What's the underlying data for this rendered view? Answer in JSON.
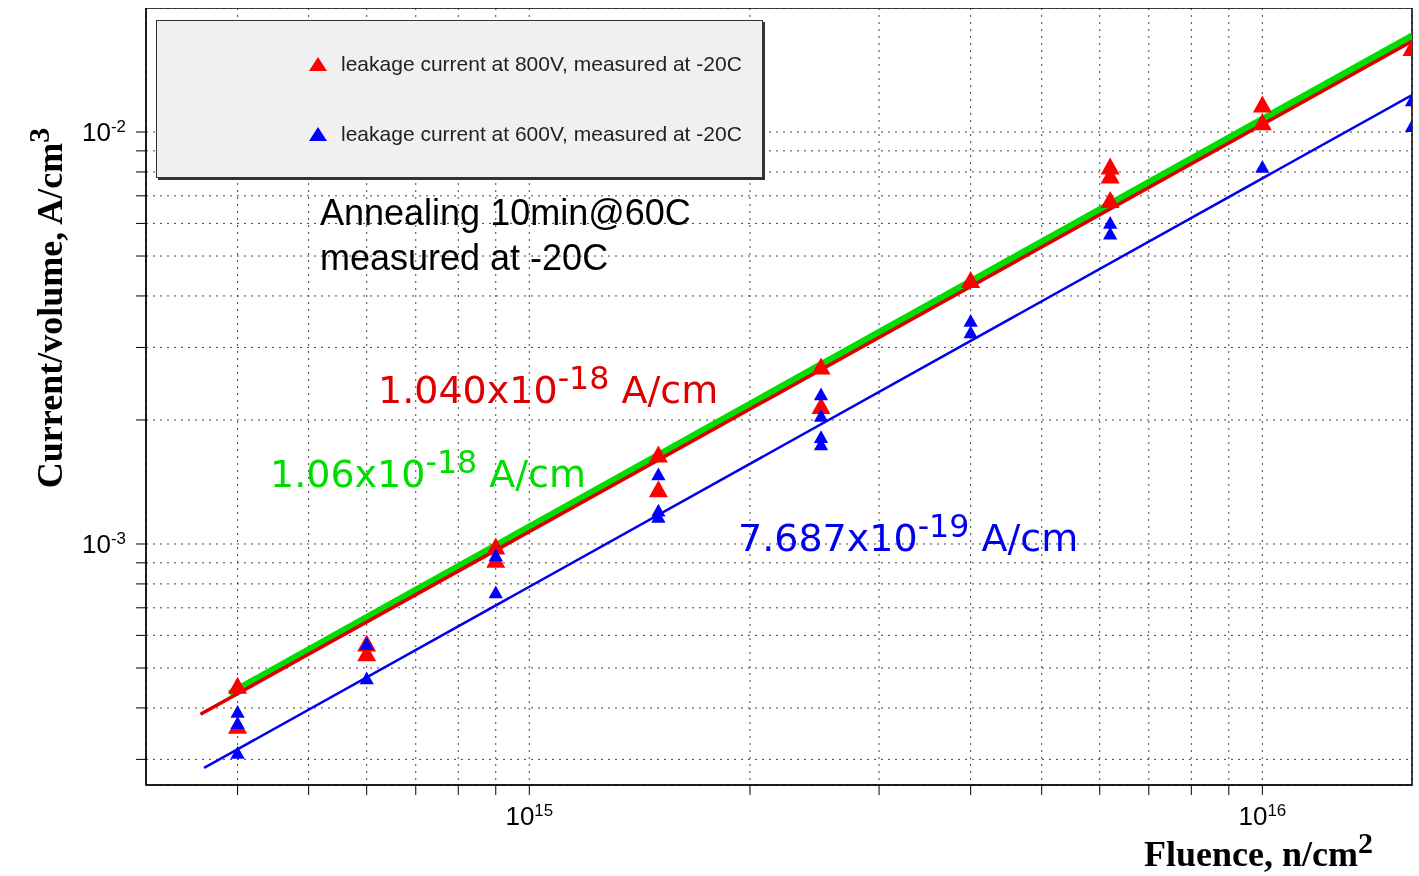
{
  "chart_data": {
    "type": "scatter",
    "xlabel": "Fluence, n/cm$^{2}$",
    "ylabel": "Current/volume, A/cm$^{3}$",
    "log": "xy",
    "grid": true,
    "legend": "top left",
    "marker": "triangle",
    "line_style": "solid",
    "xlim": [
      300000000000000.0,
      1.6e+16
    ],
    "ylim": [
      0.00026,
      0.02
    ],
    "xticks": [
      {
        "value": 400000000000000.0,
        "label": null
      },
      {
        "value": 500000000000000.0,
        "label": null
      },
      {
        "value": 600000000000000.0,
        "label": null
      },
      {
        "value": 700000000000000.0,
        "label": null
      },
      {
        "value": 800000000000000.0,
        "label": null
      },
      {
        "value": 900000000000000.0,
        "label": null
      },
      {
        "value": 1000000000000000.0,
        "label": "10$^{15}$"
      },
      {
        "value": 2000000000000000.0,
        "label": null
      },
      {
        "value": 3000000000000000.0,
        "label": null
      },
      {
        "value": 4000000000000000.0,
        "label": null
      },
      {
        "value": 5000000000000000.0,
        "label": null
      },
      {
        "value": 6000000000000000.0,
        "label": null
      },
      {
        "value": 7000000000000000.0,
        "label": null
      },
      {
        "value": 8000000000000000.0,
        "label": null
      },
      {
        "value": 9000000000000000.0,
        "label": null
      },
      {
        "value": 1e+16,
        "label": "10$^{16}$"
      }
    ],
    "yticks": [
      {
        "value": 0.0003,
        "label": null
      },
      {
        "value": 0.0004,
        "label": null
      },
      {
        "value": 0.0005,
        "label": null
      },
      {
        "value": 0.0006,
        "label": null
      },
      {
        "value": 0.0007,
        "label": null
      },
      {
        "value": 0.0008,
        "label": null
      },
      {
        "value": 0.0009,
        "label": null
      },
      {
        "value": 0.001,
        "label": "10$^{-3}$"
      },
      {
        "value": 0.002,
        "label": null
      },
      {
        "value": 0.003,
        "label": null
      },
      {
        "value": 0.004,
        "label": null
      },
      {
        "value": 0.005,
        "label": null
      },
      {
        "value": 0.006,
        "label": null
      },
      {
        "value": 0.007,
        "label": null
      },
      {
        "value": 0.008,
        "label": null
      },
      {
        "value": 0.009,
        "label": null
      },
      {
        "value": 0.01,
        "label": "10$^{-2}$"
      }
    ],
    "annotations": [
      "Annealing 10min@60C\nmeasured at -20C"
    ],
    "series": [
      {
        "name": "leakage current at 800V, measured at -20C",
        "color": "#ff0000",
        "x": [
          400000000000000.0,
          400000000000000.0,
          600000000000000.0,
          600000000000000.0,
          900000000000000.0,
          900000000000000.0,
          1500000000000000.0,
          1500000000000000.0,
          2500000000000000.0,
          2500000000000000.0,
          4000000000000000.0,
          6200000000000000.0,
          6200000000000000.0,
          6200000000000000.0,
          1e+16,
          1e+16,
          1.6e+16
        ],
        "values": [
          0.00045,
          0.00036,
          0.00057,
          0.00054,
          0.00098,
          0.00091,
          0.00164,
          0.00135,
          0.00268,
          0.00215,
          0.00435,
          0.0082,
          0.0078,
          0.0068,
          0.0116,
          0.0105,
          0.0159
        ]
      },
      {
        "name": "leakage current at 600V, measured at -20C",
        "color": "#0000ff",
        "x": [
          400000000000000.0,
          400000000000000.0,
          400000000000000.0,
          600000000000000.0,
          600000000000000.0,
          900000000000000.0,
          900000000000000.0,
          1500000000000000.0,
          1500000000000000.0,
          1500000000000000.0,
          2500000000000000.0,
          2500000000000000.0,
          2500000000000000.0,
          2500000000000000.0,
          4000000000000000.0,
          4000000000000000.0,
          6200000000000000.0,
          6200000000000000.0,
          1e+16,
          1.6e+16,
          1.6e+16
        ],
        "values": [
          0.00039,
          0.000366,
          0.00031,
          0.00057,
          0.00047,
          0.000935,
          0.00076,
          0.00147,
          0.0012,
          0.00116,
          0.0023,
          0.00204,
          0.00181,
          0.00174,
          0.00347,
          0.00325,
          0.006,
          0.00565,
          0.0082,
          0.0119,
          0.0103
        ]
      },
      {
        "type": "line",
        "marker": "none",
        "name": "1.06x10$^{-18}$ A/cm",
        "color": "#00dd00",
        "x": [
          390000000000000.0,
          1.6e+16
        ],
        "values": [
          0.000433,
          0.0171
        ]
      },
      {
        "type": "line",
        "marker": "none",
        "name": "1.040x10$^{-18}$ A/cm",
        "color": "#dd0000",
        "x": [
          356000000000000.0,
          1.6e+16
        ],
        "values": [
          0.000386,
          0.0166
        ]
      },
      {
        "type": "line",
        "marker": "none",
        "name": "7.687x10$^{-19}$ A/cm",
        "color": "#0000ee",
        "x": [
          360000000000000.0,
          1.6e+16
        ],
        "values": [
          0.000286,
          0.0123
        ]
      }
    ]
  }
}
